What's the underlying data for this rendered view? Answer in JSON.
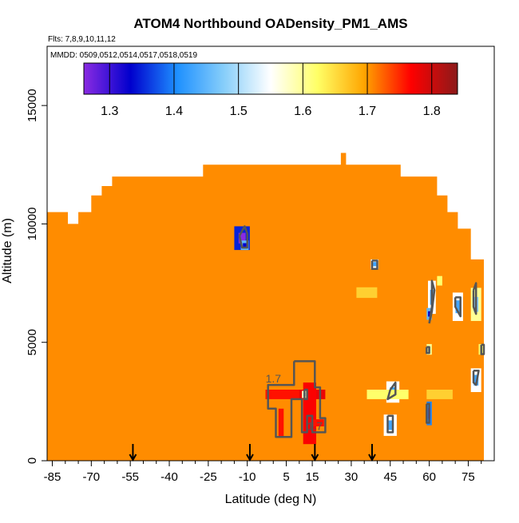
{
  "chart_data": {
    "type": "heatmap",
    "title": "ATOM4 Northbound OADensity_PM1_AMS",
    "flights_label": "Flts: 7,8,9,10,11,12",
    "dates_label": "MMDD: 0509,0512,0514,0517,0518,0519",
    "xlabel": "Latitude (deg N)",
    "ylabel": "Altitude (m)",
    "xlim": [
      -87,
      85
    ],
    "ylim": [
      0,
      17500
    ],
    "x_ticks": [
      -85,
      -70,
      -55,
      -40,
      -25,
      -10,
      5,
      15,
      30,
      45,
      60,
      75
    ],
    "x_tick_labels": [
      "-85",
      "-70",
      "-55",
      "-40",
      "-25",
      "-10",
      "5",
      "15",
      "30",
      "45",
      "60",
      "75"
    ],
    "y_ticks": [
      0,
      5000,
      10000,
      15000
    ],
    "y_tick_labels": [
      "0",
      "5000",
      "10000",
      "15000"
    ],
    "colorbar": {
      "min": 1.26,
      "max": 1.84,
      "ticks": [
        1.3,
        1.4,
        1.5,
        1.6,
        1.7,
        1.8
      ],
      "tick_labels": [
        "1.3",
        "1.4",
        "1.5",
        "1.6",
        "1.7",
        "1.8"
      ],
      "stops": [
        "#8a2be2",
        "#0000cd",
        "#1e90ff",
        "#87cefa",
        "#ffffff",
        "#ffff66",
        "#ffa500",
        "#ff0000",
        "#8b1a1a"
      ]
    },
    "background_value": 1.72,
    "background_color": "#ff8c00",
    "data_outline": [
      [
        -87,
        0
      ],
      [
        -87,
        10500
      ],
      [
        -79,
        10500
      ],
      [
        -79,
        10000
      ],
      [
        -75,
        10000
      ],
      [
        -75,
        10500
      ],
      [
        -70,
        10500
      ],
      [
        -70,
        11200
      ],
      [
        -66,
        11200
      ],
      [
        -66,
        11600
      ],
      [
        -62,
        11600
      ],
      [
        -62,
        12000
      ],
      [
        -27,
        12000
      ],
      [
        -27,
        12500
      ],
      [
        26,
        12500
      ],
      [
        26,
        13000
      ],
      [
        28,
        13000
      ],
      [
        28,
        12500
      ],
      [
        49,
        12500
      ],
      [
        49,
        12000
      ],
      [
        63,
        12000
      ],
      [
        63,
        11200
      ],
      [
        67,
        11200
      ],
      [
        67,
        10500
      ],
      [
        71,
        10500
      ],
      [
        71,
        9800
      ],
      [
        76,
        9800
      ],
      [
        76,
        8500
      ],
      [
        81,
        8500
      ],
      [
        81,
        0
      ]
    ],
    "anomalies": [
      {
        "lat": -12,
        "alt": 9400,
        "value": 1.35,
        "width": 6,
        "height": 1000
      },
      {
        "lat": -11,
        "alt": 9100,
        "value": 1.45,
        "width": 3,
        "height": 400
      },
      {
        "lat": 39,
        "alt": 8300,
        "value": 1.55,
        "width": 3,
        "height": 400
      },
      {
        "lat": 36,
        "alt": 7100,
        "value": 1.66,
        "width": 8,
        "height": 450
      },
      {
        "lat": 61,
        "alt": 6900,
        "value": 1.55,
        "width": 3,
        "height": 1400
      },
      {
        "lat": 60,
        "alt": 6200,
        "value": 1.45,
        "width": 2,
        "height": 500
      },
      {
        "lat": 64,
        "alt": 7600,
        "value": 1.62,
        "width": 2,
        "height": 400
      },
      {
        "lat": 71,
        "alt": 6500,
        "value": 1.55,
        "width": 4,
        "height": 1200
      },
      {
        "lat": 78,
        "alt": 6600,
        "value": 1.6,
        "width": 4,
        "height": 1400
      },
      {
        "lat": 60,
        "alt": 4700,
        "value": 1.6,
        "width": 2,
        "height": 450
      },
      {
        "lat": 80,
        "alt": 4700,
        "value": 1.62,
        "width": 2,
        "height": 450
      },
      {
        "lat": 78,
        "alt": 3400,
        "value": 1.55,
        "width": 4,
        "height": 1000
      },
      {
        "lat": 46,
        "alt": 2900,
        "value": 1.55,
        "width": 5,
        "height": 900
      },
      {
        "lat": 44,
        "alt": 2800,
        "value": 1.62,
        "width": 16,
        "height": 400
      },
      {
        "lat": 45,
        "alt": 1500,
        "value": 1.55,
        "width": 5,
        "height": 900
      },
      {
        "lat": 60,
        "alt": 2000,
        "value": 1.4,
        "width": 2,
        "height": 1000
      },
      {
        "lat": 64,
        "alt": 2800,
        "value": 1.66,
        "width": 10,
        "height": 400
      },
      {
        "lat": 4,
        "alt": 2800,
        "value": 1.76,
        "width": 14,
        "height": 400
      },
      {
        "lat": 15,
        "alt": 2800,
        "value": 1.78,
        "width": 10,
        "height": 400
      },
      {
        "lat": 14,
        "alt": 2000,
        "value": 1.77,
        "width": 5,
        "height": 2600
      },
      {
        "lat": 3,
        "alt": 1600,
        "value": 1.76,
        "width": 2,
        "height": 1200
      },
      {
        "lat": 17,
        "alt": 1600,
        "value": 1.76,
        "width": 5,
        "height": 300
      },
      {
        "lat": 12,
        "alt": 2800,
        "value": 1.58,
        "width": 2,
        "height": 300
      }
    ],
    "contours": [
      {
        "label": "",
        "points": [
          [
            -13,
            9500
          ],
          [
            -11,
            9900
          ],
          [
            -10,
            9600
          ],
          [
            -10,
            9000
          ],
          [
            -12,
            9000
          ],
          [
            -13,
            9500
          ]
        ]
      },
      {
        "label": "",
        "points": [
          [
            38,
            8450
          ],
          [
            40,
            8450
          ],
          [
            40,
            8100
          ],
          [
            38,
            8100
          ],
          [
            38,
            8450
          ]
        ]
      },
      {
        "label": "",
        "points": [
          [
            60,
            5800
          ],
          [
            61,
            6500
          ],
          [
            61,
            7600
          ],
          [
            62,
            7200
          ],
          [
            61,
            6300
          ],
          [
            60,
            5800
          ]
        ]
      },
      {
        "label": "",
        "points": [
          [
            70,
            6900
          ],
          [
            72,
            6900
          ],
          [
            72,
            6100
          ],
          [
            70,
            6500
          ],
          [
            70,
            6900
          ]
        ]
      },
      {
        "label": "",
        "points": [
          [
            77,
            7200
          ],
          [
            78,
            7500
          ],
          [
            78,
            6200
          ],
          [
            77,
            6500
          ],
          [
            77,
            7200
          ]
        ]
      },
      {
        "label": "",
        "points": [
          [
            59,
            4800
          ],
          [
            60,
            4800
          ],
          [
            60,
            4550
          ],
          [
            59,
            4550
          ],
          [
            59,
            4800
          ]
        ]
      },
      {
        "label": "",
        "points": [
          [
            80,
            4900
          ],
          [
            81,
            4900
          ],
          [
            81,
            4500
          ],
          [
            80,
            4500
          ],
          [
            80,
            4900
          ]
        ]
      },
      {
        "label": "",
        "points": [
          [
            77,
            3800
          ],
          [
            79,
            3800
          ],
          [
            78,
            3200
          ],
          [
            77,
            3300
          ],
          [
            77,
            3800
          ]
        ]
      },
      {
        "label": "",
        "points": [
          [
            45,
            3000
          ],
          [
            47,
            3300
          ],
          [
            47,
            2800
          ],
          [
            44,
            2600
          ],
          [
            45,
            3000
          ]
        ]
      },
      {
        "label": "",
        "points": [
          [
            44,
            1900
          ],
          [
            46,
            1900
          ],
          [
            46,
            1200
          ],
          [
            44,
            1200
          ],
          [
            44,
            1900
          ]
        ]
      },
      {
        "label": "",
        "points": [
          [
            59,
            2400
          ],
          [
            60,
            2400
          ],
          [
            60,
            1600
          ],
          [
            59,
            1600
          ],
          [
            59,
            2400
          ]
        ]
      },
      {
        "label": "",
        "points": [
          [
            12,
            3000
          ],
          [
            13,
            3000
          ],
          [
            13,
            2600
          ],
          [
            12,
            2600
          ],
          [
            12,
            3000
          ]
        ]
      },
      {
        "label": "1.7",
        "points": [
          [
            8,
            4200
          ],
          [
            16,
            4200
          ],
          [
            16,
            3100
          ],
          [
            18,
            3100
          ],
          [
            18,
            1800
          ],
          [
            20,
            1800
          ],
          [
            20,
            1200
          ],
          [
            15,
            1200
          ],
          [
            15,
            1900
          ],
          [
            13,
            1900
          ],
          [
            13,
            1200
          ],
          [
            11,
            1200
          ],
          [
            11,
            2600
          ],
          [
            7,
            2600
          ],
          [
            7,
            1000
          ],
          [
            1,
            1000
          ],
          [
            1,
            2200
          ],
          [
            -2,
            2200
          ],
          [
            -2,
            3200
          ],
          [
            8,
            3200
          ],
          [
            8,
            4200
          ]
        ]
      }
    ],
    "contour_labels": [
      {
        "text": "1.7",
        "lat": 0,
        "alt": 3300
      },
      {
        "text": "1.7",
        "lat": 16,
        "alt": 1300
      }
    ],
    "markers": [
      -54,
      -9,
      16,
      38
    ]
  }
}
